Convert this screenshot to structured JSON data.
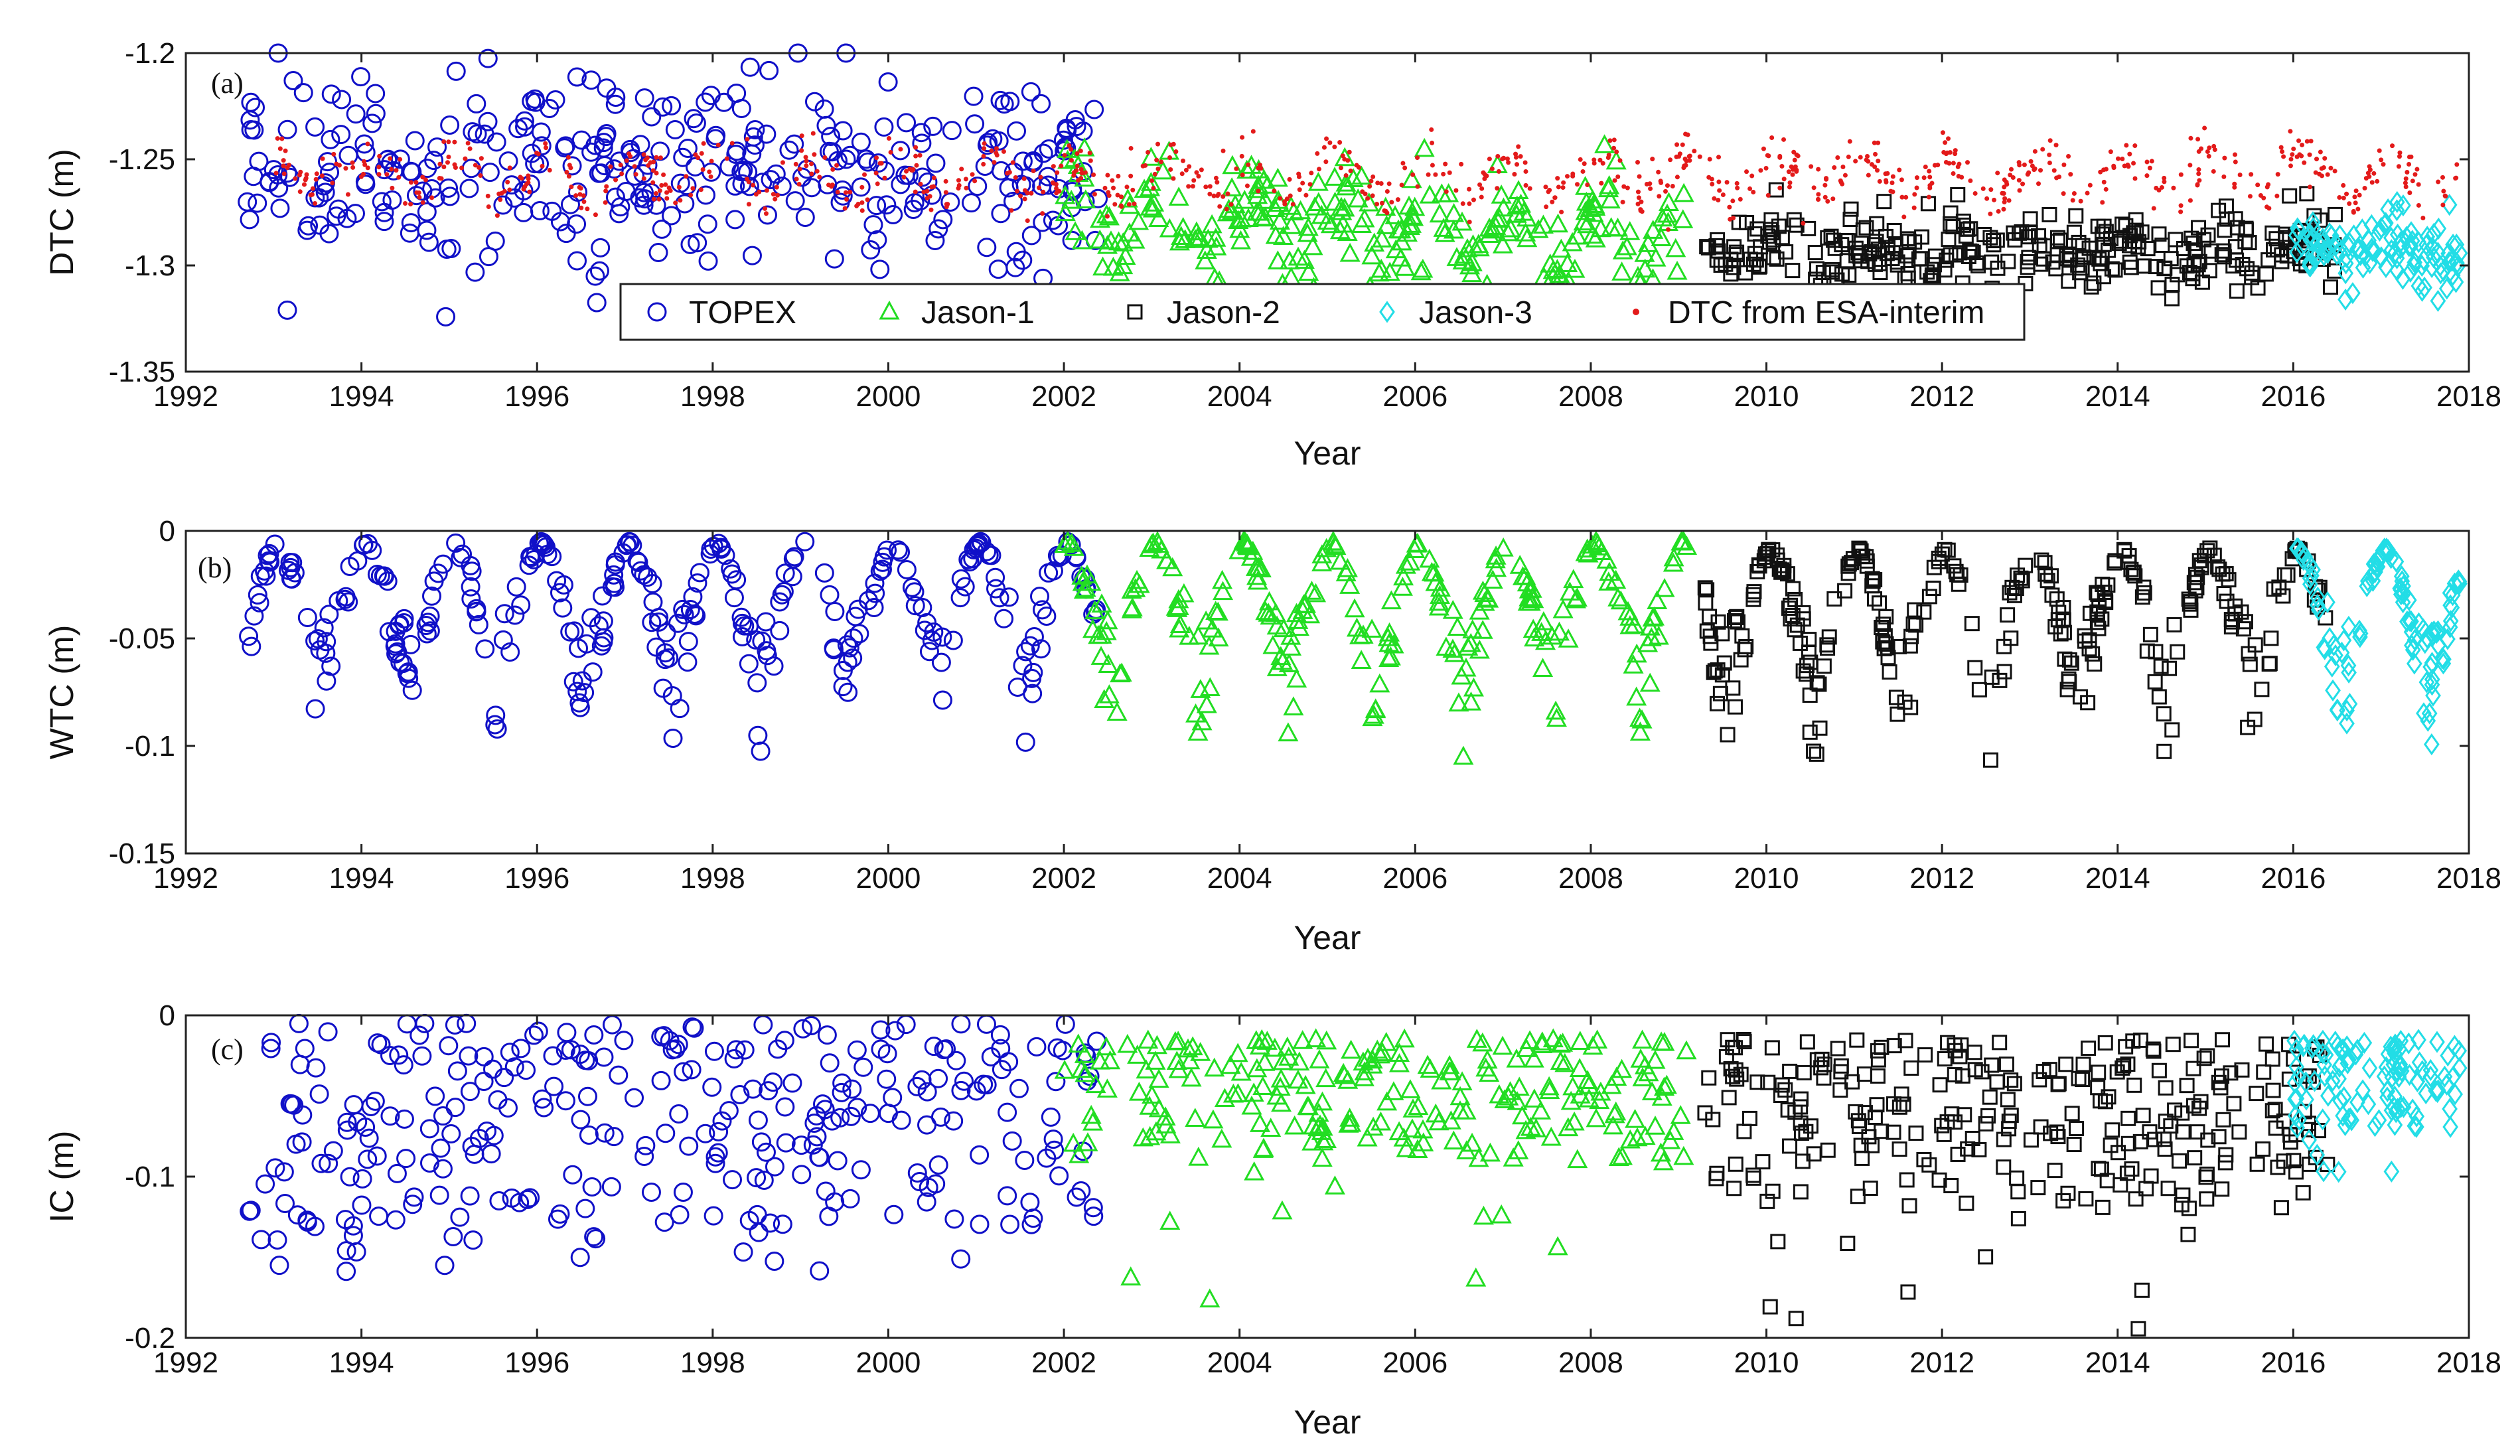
{
  "colors": {
    "TOPEX": "#1010c8",
    "Jason-1": "#22dd22",
    "Jason-2": "#111111",
    "Jason-3": "#22dde6",
    "DTC from ESA-interim": "#e31a1a"
  },
  "legend_entries": [
    "TOPEX",
    "Jason-1",
    "Jason-2",
    "Jason-3",
    "DTC from ESA-interim"
  ],
  "chart_data": [
    {
      "type": "scatter",
      "panel_label": "(a)",
      "ylabel": "DTC (m)",
      "xlabel": "Year",
      "xlim": [
        1992,
        2018
      ],
      "ylim": [
        -1.35,
        -1.2
      ],
      "xticks": [
        1992,
        1994,
        1996,
        1998,
        2000,
        2002,
        2004,
        2006,
        2008,
        2010,
        2012,
        2014,
        2016,
        2018
      ],
      "xtick_labels": [
        "1992",
        "1994",
        "1996",
        "1998",
        "2000",
        "2002",
        "2004",
        "2006",
        "2008",
        "2010",
        "2012",
        "2014",
        "2016",
        "2018"
      ],
      "yticks": [
        -1.35,
        -1.3,
        -1.25,
        -1.2
      ],
      "ytick_labels": [
        "-1.35",
        "-1.3",
        "-1.25",
        "-1.2"
      ],
      "legend": "bottom-center",
      "series": [
        {
          "name": "TOPEX",
          "marker": "circle",
          "x_range": [
            1992.7,
            2002.5
          ],
          "mean": -1.255,
          "spread": 0.025,
          "seasonal_amp": 0.0,
          "n": 340
        },
        {
          "name": "Jason-1",
          "marker": "triangle",
          "x_range": [
            2002.0,
            2009.1
          ],
          "mean": -1.277,
          "trend": -0.0018,
          "spread": 0.012,
          "seasonal_amp": 0.012,
          "n": 260
        },
        {
          "name": "Jason-2",
          "marker": "square",
          "x_range": [
            2009.3,
            2016.5
          ],
          "mean": -1.293,
          "spread": 0.009,
          "seasonal_amp": 0.004,
          "n": 300
        },
        {
          "name": "Jason-3",
          "marker": "diamond",
          "x_range": [
            2016.0,
            2017.9
          ],
          "mean": -1.294,
          "spread": 0.008,
          "seasonal_amp": 0.005,
          "n": 110
        },
        {
          "name": "DTC from ESA-interim",
          "marker": "dot",
          "x_range": [
            1992.9,
            2017.9
          ],
          "mean": -1.258,
          "spread": 0.006,
          "seasonal_amp": 0.008,
          "n": 900
        }
      ]
    },
    {
      "type": "scatter",
      "panel_label": "(b)",
      "ylabel": "WTC (m)",
      "xlabel": "Year",
      "xlim": [
        1992,
        2018
      ],
      "ylim": [
        -0.15,
        0
      ],
      "xticks": [
        1992,
        1994,
        1996,
        1998,
        2000,
        2002,
        2004,
        2006,
        2008,
        2010,
        2012,
        2014,
        2016,
        2018
      ],
      "xtick_labels": [
        "1992",
        "1994",
        "1996",
        "1998",
        "2000",
        "2002",
        "2004",
        "2006",
        "2008",
        "2010",
        "2012",
        "2014",
        "2016",
        "2018"
      ],
      "yticks": [
        -0.15,
        -0.1,
        -0.05,
        0
      ],
      "ytick_labels": [
        "-0.15",
        "-0.1",
        "-0.05",
        "0"
      ],
      "series": [
        {
          "name": "TOPEX",
          "marker": "circle",
          "x_range": [
            1992.7,
            2002.4
          ],
          "seasonal_peak": -0.005,
          "seasonal_trough": -0.09,
          "n": 300
        },
        {
          "name": "Jason-1",
          "marker": "triangle",
          "x_range": [
            2002.0,
            2009.1
          ],
          "seasonal_peak": -0.005,
          "seasonal_trough": -0.09,
          "n": 240
        },
        {
          "name": "Jason-2",
          "marker": "square",
          "x_range": [
            2009.3,
            2016.4
          ],
          "seasonal_peak": -0.008,
          "seasonal_trough": -0.095,
          "n": 280
        },
        {
          "name": "Jason-3",
          "marker": "diamond",
          "x_range": [
            2016.0,
            2017.9
          ],
          "seasonal_peak": -0.008,
          "seasonal_trough": -0.09,
          "n": 110
        }
      ]
    },
    {
      "type": "scatter",
      "panel_label": "(c)",
      "ylabel": "IC (m)",
      "xlabel": "Year",
      "xlim": [
        1992,
        2018
      ],
      "ylim": [
        -0.2,
        0
      ],
      "xticks": [
        1992,
        1994,
        1996,
        1998,
        2000,
        2002,
        2004,
        2006,
        2008,
        2010,
        2012,
        2014,
        2016,
        2018
      ],
      "xtick_labels": [
        "1992",
        "1994",
        "1996",
        "1998",
        "2000",
        "2002",
        "2004",
        "2006",
        "2008",
        "2010",
        "2012",
        "2014",
        "2016",
        "2018"
      ],
      "yticks": [
        -0.2,
        -0.1,
        0
      ],
      "ytick_labels": [
        "-0.2",
        "-0.1",
        "0"
      ],
      "series": [
        {
          "name": "TOPEX",
          "marker": "circle",
          "x_range": [
            1992.7,
            2002.4
          ],
          "typical_min": -0.005,
          "typical_max": -0.13,
          "extreme": -0.16,
          "n": 300
        },
        {
          "name": "Jason-1",
          "marker": "triangle",
          "x_range": [
            2002.0,
            2009.1
          ],
          "typical_min": -0.015,
          "typical_max": -0.09,
          "extreme": -0.18,
          "n": 240
        },
        {
          "name": "Jason-2",
          "marker": "square",
          "x_range": [
            2009.3,
            2016.4
          ],
          "typical_min": -0.015,
          "typical_max": -0.12,
          "extreme": -0.2,
          "n": 280
        },
        {
          "name": "Jason-3",
          "marker": "diamond",
          "x_range": [
            2016.0,
            2017.9
          ],
          "typical_min": -0.015,
          "typical_max": -0.07,
          "extreme": -0.1,
          "n": 110
        }
      ]
    }
  ]
}
